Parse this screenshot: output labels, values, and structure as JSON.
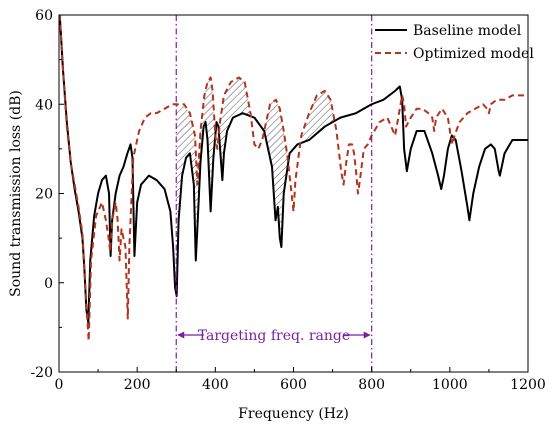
{
  "chart_data": {
    "type": "line",
    "title": "",
    "xlabel": "Frequency (Hz)",
    "ylabel": "Sound transmission loss (dB)",
    "xlim": [
      0,
      1200
    ],
    "ylim": [
      -20,
      60
    ],
    "xticks": [
      "0",
      "200",
      "400",
      "600",
      "800",
      "1000",
      "1200"
    ],
    "yticks": [
      "-20",
      "0",
      "20",
      "40",
      "60"
    ],
    "xtick_values": [
      0,
      200,
      400,
      600,
      800,
      1000,
      1200
    ],
    "ytick_values": [
      -20,
      0,
      20,
      40,
      60
    ],
    "grid": false,
    "legend": {
      "position": "top-right"
    },
    "target_range": {
      "label": "Targeting freq. range",
      "start": 300,
      "end": 800,
      "color": "#7a1fa2"
    },
    "series": [
      {
        "name": "Baseline model",
        "color": "#000000",
        "dash": "solid",
        "points": [
          [
            2,
            60
          ],
          [
            10,
            48
          ],
          [
            20,
            36
          ],
          [
            30,
            27
          ],
          [
            40,
            21
          ],
          [
            50,
            16
          ],
          [
            60,
            10
          ],
          [
            65,
            3
          ],
          [
            70,
            -6
          ],
          [
            75,
            -9
          ],
          [
            80,
            5
          ],
          [
            90,
            15
          ],
          [
            100,
            20
          ],
          [
            110,
            23
          ],
          [
            120,
            24
          ],
          [
            128,
            20
          ],
          [
            132,
            6
          ],
          [
            136,
            14
          ],
          [
            145,
            20
          ],
          [
            155,
            24
          ],
          [
            165,
            26
          ],
          [
            175,
            29
          ],
          [
            183,
            31
          ],
          [
            188,
            28
          ],
          [
            193,
            6
          ],
          [
            200,
            18
          ],
          [
            210,
            22
          ],
          [
            230,
            24
          ],
          [
            250,
            23
          ],
          [
            270,
            21
          ],
          [
            285,
            16
          ],
          [
            292,
            8
          ],
          [
            297,
            -1
          ],
          [
            301,
            -3
          ],
          [
            306,
            14
          ],
          [
            315,
            24
          ],
          [
            325,
            28
          ],
          [
            335,
            29
          ],
          [
            345,
            22
          ],
          [
            350,
            5
          ],
          [
            355,
            14
          ],
          [
            362,
            27
          ],
          [
            370,
            35
          ],
          [
            375,
            36
          ],
          [
            380,
            32
          ],
          [
            388,
            16
          ],
          [
            395,
            28
          ],
          [
            403,
            36
          ],
          [
            408,
            35
          ],
          [
            413,
            29
          ],
          [
            418,
            23
          ],
          [
            422,
            29
          ],
          [
            430,
            34
          ],
          [
            445,
            37
          ],
          [
            470,
            38
          ],
          [
            500,
            37
          ],
          [
            525,
            34
          ],
          [
            545,
            26
          ],
          [
            554,
            14
          ],
          [
            560,
            17
          ],
          [
            565,
            10
          ],
          [
            569,
            8
          ],
          [
            575,
            20
          ],
          [
            590,
            29
          ],
          [
            610,
            31
          ],
          [
            640,
            32
          ],
          [
            680,
            35
          ],
          [
            720,
            37
          ],
          [
            760,
            38
          ],
          [
            800,
            40
          ],
          [
            830,
            41
          ],
          [
            860,
            43
          ],
          [
            872,
            44
          ],
          [
            878,
            41
          ],
          [
            883,
            30
          ],
          [
            890,
            25
          ],
          [
            900,
            30
          ],
          [
            915,
            34
          ],
          [
            935,
            34
          ],
          [
            955,
            29
          ],
          [
            970,
            24
          ],
          [
            978,
            21
          ],
          [
            985,
            24
          ],
          [
            995,
            30
          ],
          [
            1005,
            33
          ],
          [
            1015,
            32
          ],
          [
            1030,
            25
          ],
          [
            1045,
            17
          ],
          [
            1050,
            14
          ],
          [
            1060,
            20
          ],
          [
            1075,
            26
          ],
          [
            1090,
            30
          ],
          [
            1105,
            31
          ],
          [
            1115,
            30
          ],
          [
            1125,
            25
          ],
          [
            1128,
            24
          ],
          [
            1140,
            29
          ],
          [
            1160,
            32
          ],
          [
            1180,
            32
          ],
          [
            1200,
            32
          ]
        ]
      },
      {
        "name": "Optimized model",
        "color": "#b2331e",
        "dash": "dashed",
        "points": [
          [
            2,
            60
          ],
          [
            10,
            48
          ],
          [
            20,
            35
          ],
          [
            30,
            27
          ],
          [
            40,
            22
          ],
          [
            50,
            17
          ],
          [
            60,
            11
          ],
          [
            70,
            -5
          ],
          [
            76,
            -13
          ],
          [
            82,
            5
          ],
          [
            95,
            15
          ],
          [
            110,
            18
          ],
          [
            120,
            14
          ],
          [
            127,
            10
          ],
          [
            131,
            7
          ],
          [
            136,
            14
          ],
          [
            145,
            18
          ],
          [
            150,
            14
          ],
          [
            155,
            5
          ],
          [
            160,
            12
          ],
          [
            170,
            8
          ],
          [
            176,
            -8
          ],
          [
            180,
            8
          ],
          [
            190,
            28
          ],
          [
            205,
            34
          ],
          [
            220,
            37
          ],
          [
            235,
            38
          ],
          [
            250,
            38
          ],
          [
            270,
            39
          ],
          [
            290,
            40
          ],
          [
            305,
            40
          ],
          [
            320,
            40
          ],
          [
            335,
            38
          ],
          [
            348,
            33
          ],
          [
            354,
            22
          ],
          [
            362,
            34
          ],
          [
            372,
            42
          ],
          [
            380,
            45
          ],
          [
            388,
            46
          ],
          [
            393,
            43
          ],
          [
            400,
            33
          ],
          [
            405,
            30
          ],
          [
            412,
            36
          ],
          [
            422,
            42
          ],
          [
            440,
            45
          ],
          [
            460,
            46
          ],
          [
            475,
            45
          ],
          [
            490,
            38
          ],
          [
            500,
            31
          ],
          [
            510,
            30
          ],
          [
            520,
            32
          ],
          [
            530,
            36
          ],
          [
            540,
            40
          ],
          [
            555,
            41
          ],
          [
            565,
            39
          ],
          [
            575,
            34
          ],
          [
            585,
            28
          ],
          [
            595,
            20
          ],
          [
            600,
            16
          ],
          [
            605,
            23
          ],
          [
            620,
            33
          ],
          [
            640,
            38
          ],
          [
            660,
            42
          ],
          [
            680,
            43
          ],
          [
            695,
            41
          ],
          [
            710,
            34
          ],
          [
            722,
            25
          ],
          [
            728,
            22
          ],
          [
            735,
            27
          ],
          [
            742,
            31
          ],
          [
            750,
            31
          ],
          [
            755,
            29
          ],
          [
            760,
            25
          ],
          [
            765,
            20
          ],
          [
            770,
            23
          ],
          [
            780,
            30
          ],
          [
            790,
            31
          ],
          [
            800,
            33
          ],
          [
            820,
            36
          ],
          [
            840,
            37
          ],
          [
            855,
            34
          ],
          [
            860,
            33
          ],
          [
            870,
            38
          ],
          [
            878,
            42
          ],
          [
            883,
            40
          ],
          [
            888,
            35
          ],
          [
            900,
            37
          ],
          [
            915,
            39
          ],
          [
            930,
            39
          ],
          [
            945,
            38
          ],
          [
            955,
            37
          ],
          [
            960,
            34
          ],
          [
            965,
            37
          ],
          [
            980,
            39
          ],
          [
            995,
            37
          ],
          [
            1002,
            33
          ],
          [
            1007,
            31
          ],
          [
            1012,
            33
          ],
          [
            1025,
            36
          ],
          [
            1045,
            38
          ],
          [
            1065,
            39
          ],
          [
            1085,
            40
          ],
          [
            1095,
            39
          ],
          [
            1100,
            38
          ],
          [
            1105,
            40
          ],
          [
            1120,
            41
          ],
          [
            1140,
            41
          ],
          [
            1160,
            42
          ],
          [
            1180,
            42
          ],
          [
            1200,
            42
          ]
        ]
      }
    ]
  }
}
